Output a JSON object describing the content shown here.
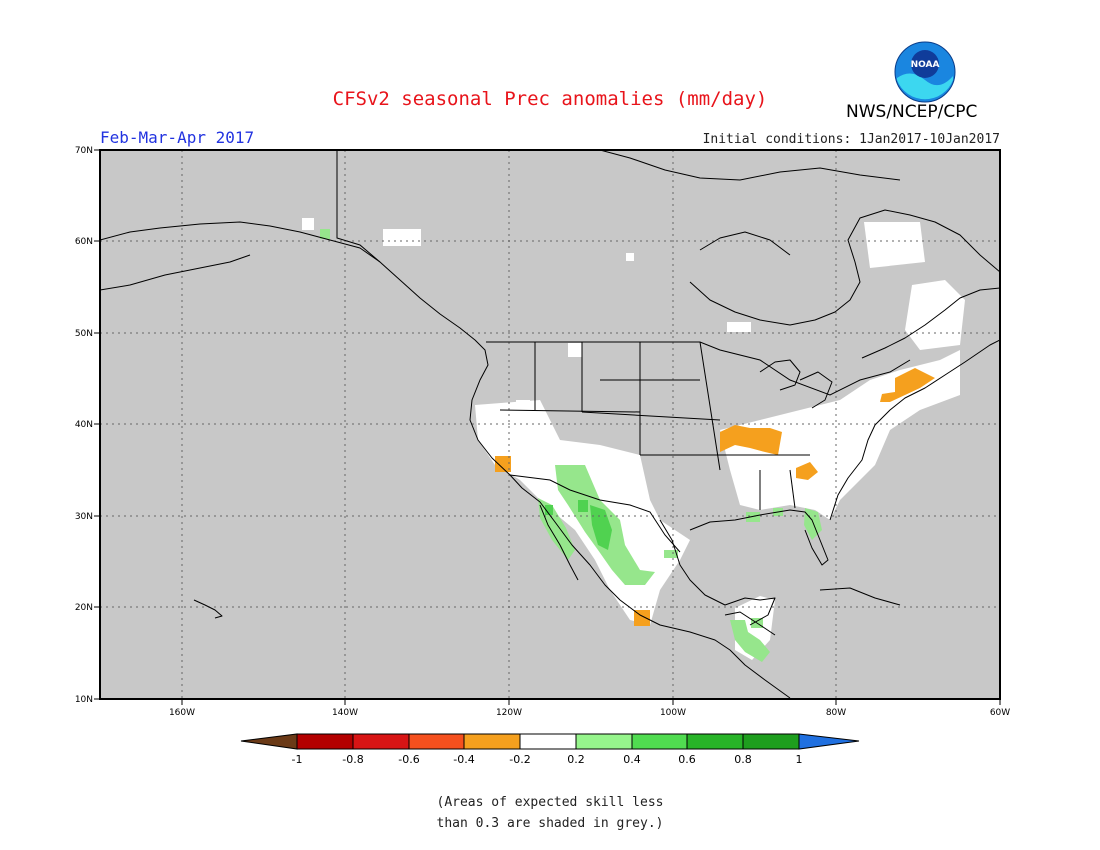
{
  "header": {
    "title": "CFSv2 seasonal Prec anomalies (mm/day)",
    "agency": "NWS/NCEP/CPC",
    "logo_text": "NOAA",
    "season": "Feb-Mar-Apr 2017",
    "initial_conditions": "Initial conditions: 1Jan2017-10Jan2017"
  },
  "map": {
    "lon_labels": [
      "160W",
      "140W",
      "120W",
      "100W",
      "80W",
      "60W"
    ],
    "lat_labels": [
      "70N",
      "60N",
      "50N",
      "40N",
      "30N",
      "20N",
      "10N"
    ],
    "background_color": "#c8c8c8",
    "coastline_color": "#000000",
    "gridline_style": "dotted"
  },
  "anomaly_regions": [
    {
      "name": "Ohio Valley",
      "category": "-0.4 to -0.2"
    },
    {
      "name": "Northeast US",
      "category": "-0.4 to -0.2"
    },
    {
      "name": "Southern California",
      "category": "-0.4 to -0.2"
    },
    {
      "name": "Northwest Mexico / Sierra Madre",
      "category": "0.2 to 0.4"
    },
    {
      "name": "Baja California",
      "category": "0.2 to 0.4"
    },
    {
      "name": "Central America",
      "category": "0.2 to 0.4"
    },
    {
      "name": "Florida",
      "category": "0.2 to 0.4"
    }
  ],
  "colorbar": {
    "labels": [
      "-1",
      "-0.8",
      "-0.6",
      "-0.4",
      "-0.2",
      "0.2",
      "0.4",
      "0.6",
      "0.8",
      "1"
    ],
    "colors": [
      "#6b3a17",
      "#b30000",
      "#d81515",
      "#f5501e",
      "#f5a01e",
      "#ffffff",
      "#96f58c",
      "#50dc50",
      "#28b428",
      "#1e9e1e",
      "#2070e0"
    ]
  },
  "footnote": {
    "line1": "(Areas of expected skill less",
    "line2": "than 0.3 are shaded in grey.)"
  }
}
